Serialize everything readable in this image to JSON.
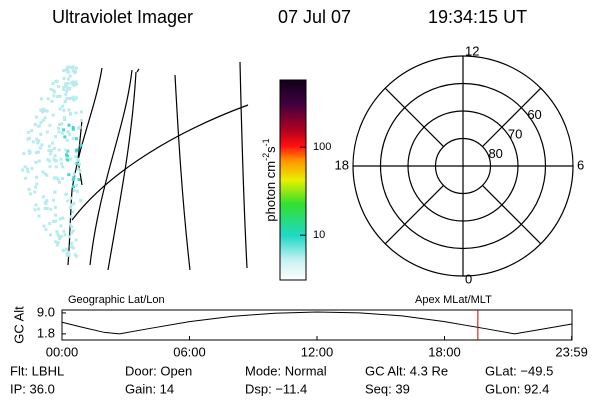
{
  "header": {
    "title": "Ultraviolet Imager",
    "date": "07 Jul 07",
    "time": "19:34:15 UT"
  },
  "colorbar": {
    "label": "photon cm",
    "exp1": "-2",
    "unit2": "s",
    "exp2": "-1",
    "range": [
      3.1,
      580
    ],
    "ticks": [
      10,
      100
    ],
    "log": true
  },
  "polar": {
    "mlt_labels": [
      "12",
      "6",
      "0",
      "18"
    ],
    "lat_circles": [
      80,
      70,
      60,
      50
    ],
    "lat_labels": [
      60,
      70,
      80
    ]
  },
  "timeline": {
    "left_label": "Geographic Lat/Lon",
    "right_label": "Apex MLat/MLT",
    "ylabel": "GC Alt",
    "xlim": [
      0,
      24
    ],
    "ylim": [
      -0.3,
      10.0
    ],
    "xticks": [
      {
        "value": 0,
        "label": "00:00"
      },
      {
        "value": 6,
        "label": "06:00"
      },
      {
        "value": 12,
        "label": "12:00"
      },
      {
        "value": 18,
        "label": "18:00"
      },
      {
        "value": 23.983,
        "label": "23:59"
      }
    ],
    "yticks": [
      {
        "value": 9.0,
        "label": "9.0"
      },
      {
        "value": 1.8,
        "label": "1.8"
      }
    ],
    "x": [
      0,
      1,
      2,
      2.7,
      4,
      6,
      8,
      10,
      12,
      14,
      16,
      18,
      20,
      21.3,
      22.5,
      24
    ],
    "values": [
      5.8,
      4.0,
      2.3,
      1.8,
      3.5,
      6.0,
      7.8,
      8.9,
      9.3,
      9.0,
      8.0,
      6.0,
      3.5,
      1.8,
      3.3,
      5.2
    ],
    "marker_hour": 19.57
  },
  "info": {
    "rows": [
      [
        "Flt: LBHL",
        "Door: Open",
        "Mode: Normal",
        "GC Alt: 4.3 Re",
        "GLat: −49.5"
      ],
      [
        "IP: 36.0",
        "Gain: 14",
        "Dsp: −11.4",
        "Seq: 39",
        "GLon: 92.4"
      ]
    ]
  }
}
